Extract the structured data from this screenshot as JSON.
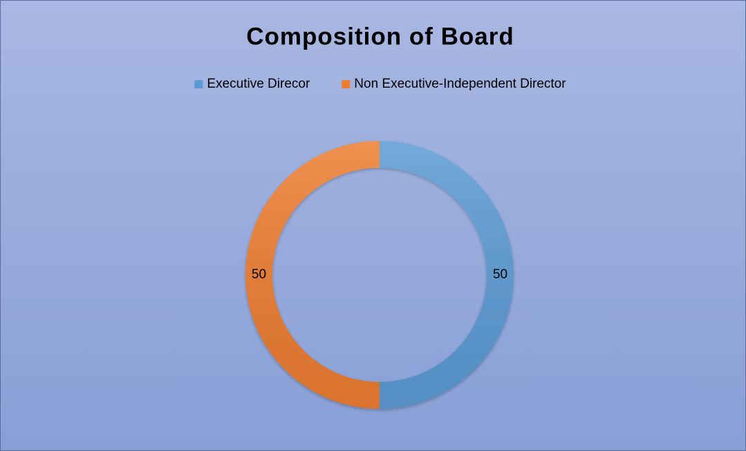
{
  "chart_data": {
    "type": "donut",
    "title": "Composition of Board",
    "categories": [
      "Executive Direcor",
      "Non Executive-Independent Director"
    ],
    "values": [
      50,
      50
    ],
    "colors": [
      "#5b9bd5",
      "#ed7d31"
    ],
    "legend": "top"
  }
}
